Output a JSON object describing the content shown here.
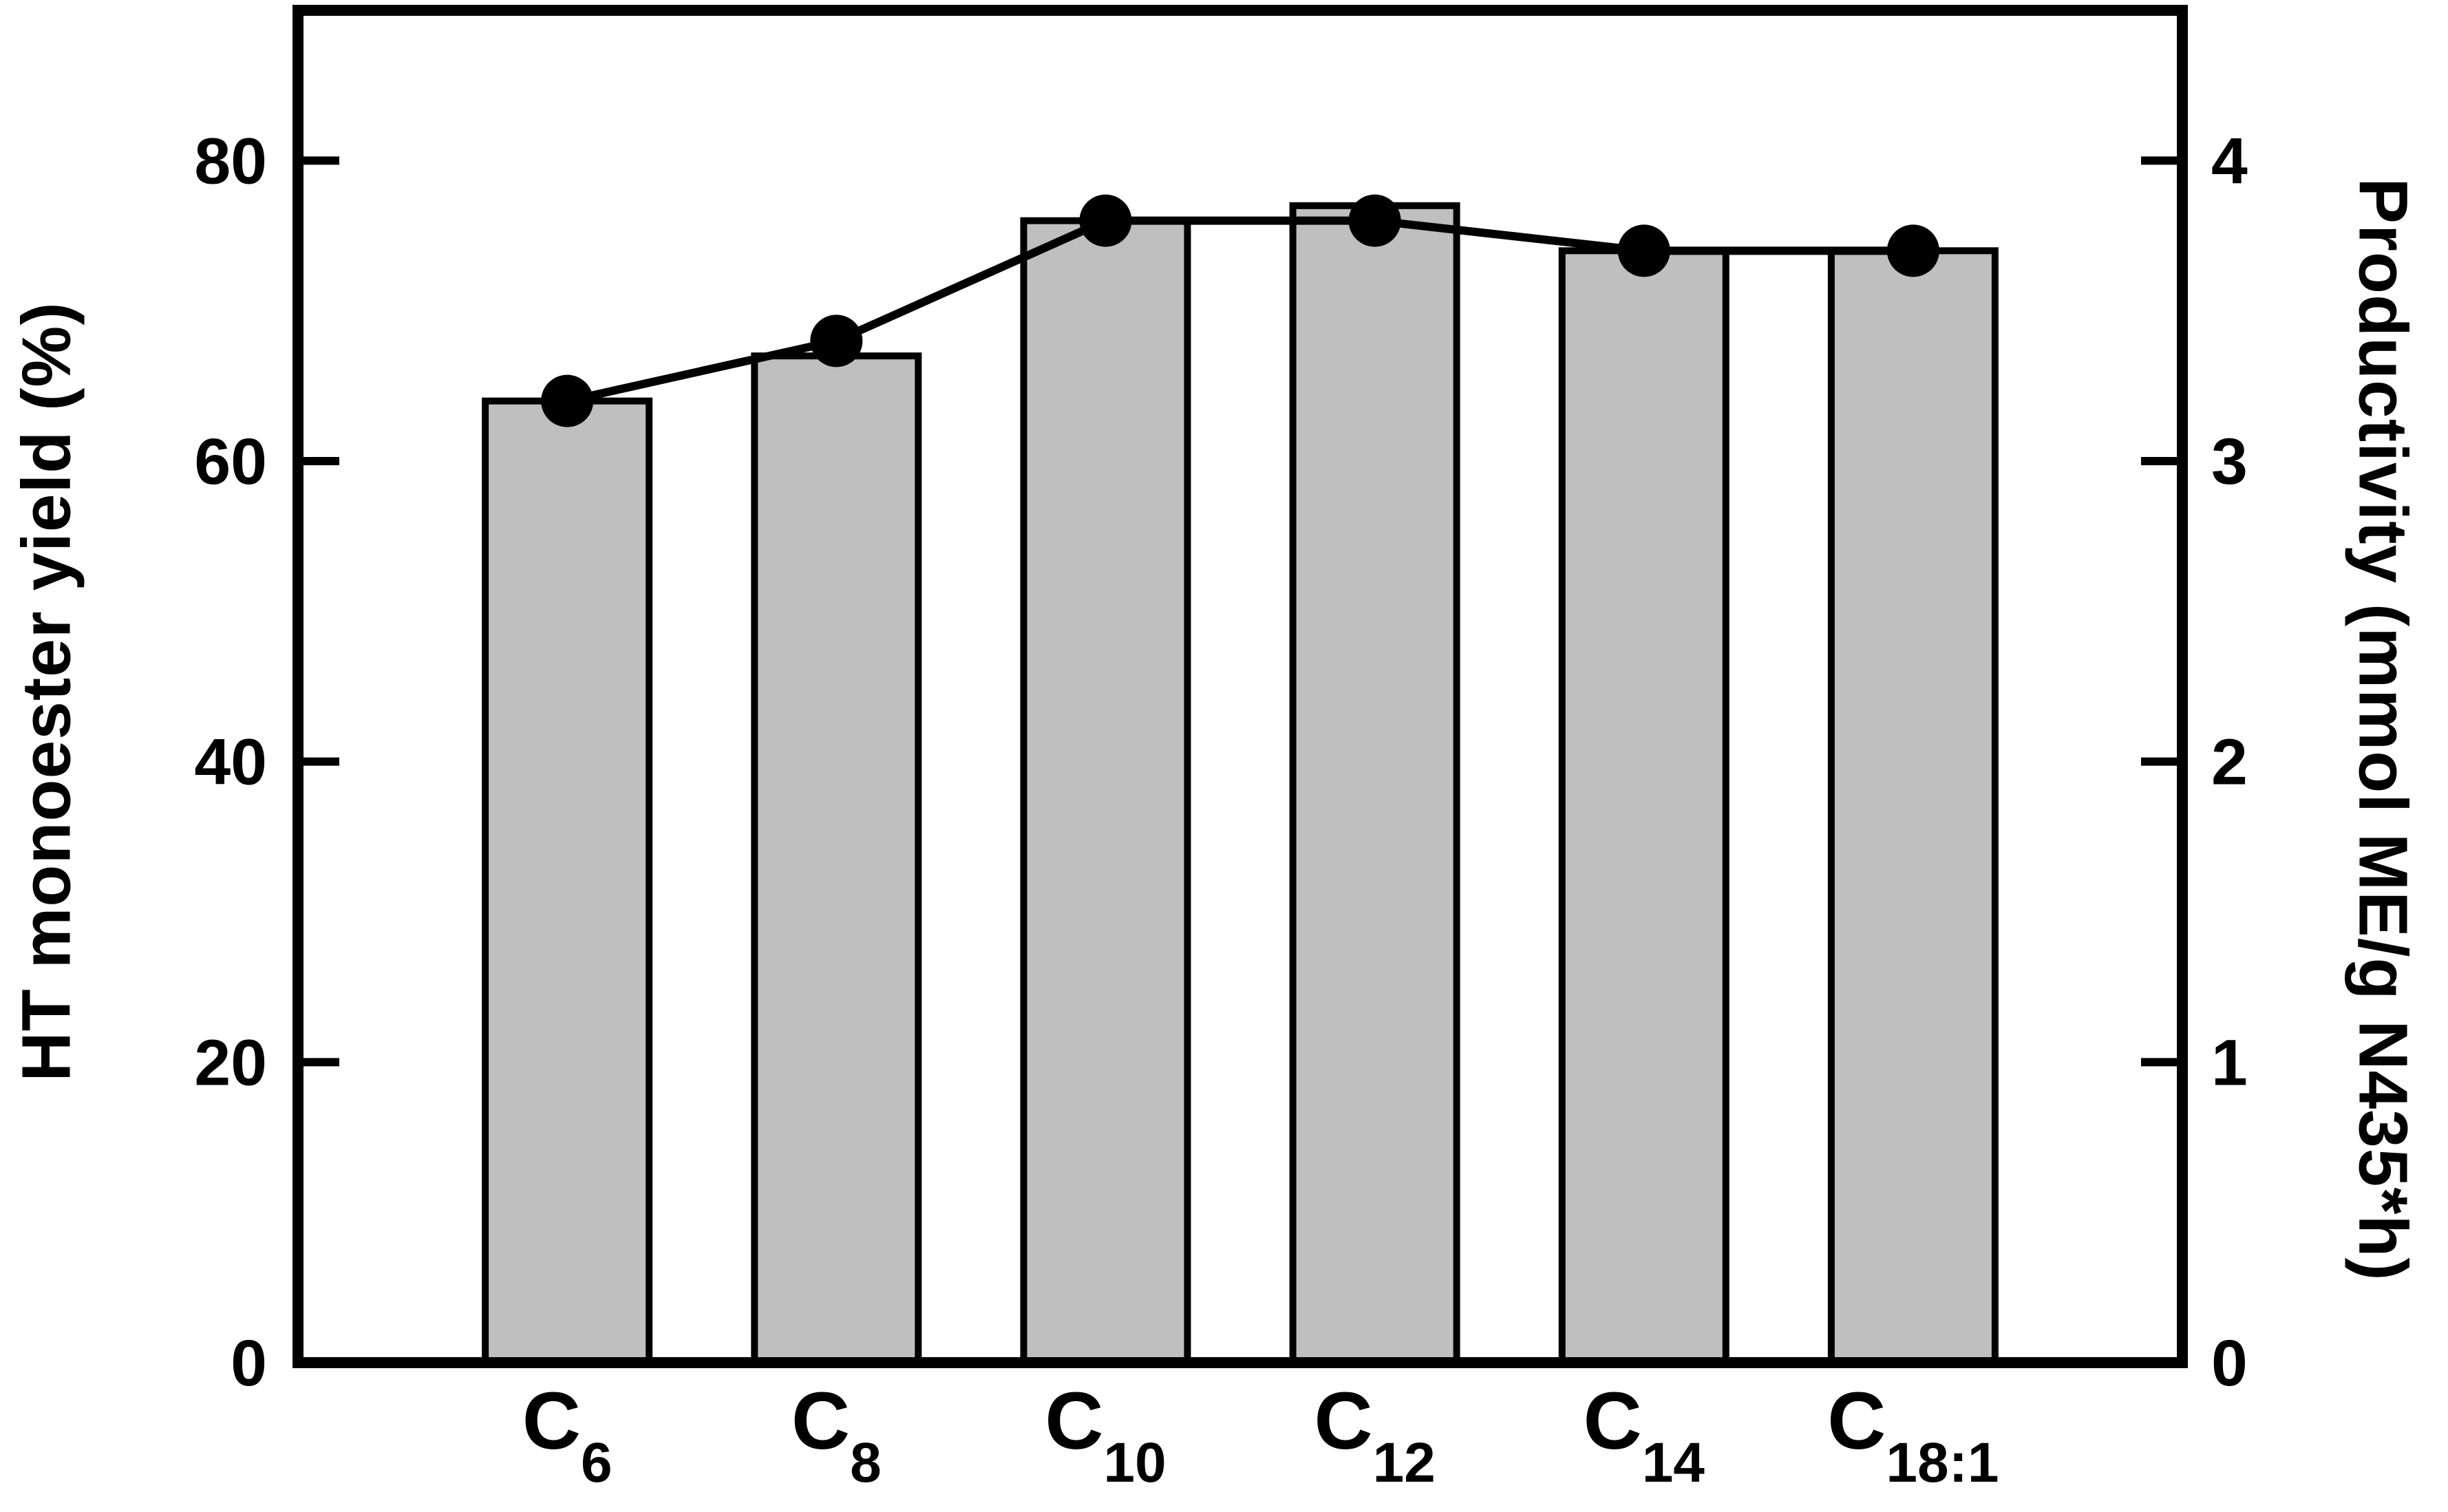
{
  "chart_data": {
    "type": "bar",
    "title": "",
    "categories": [
      {
        "base": "C",
        "sub": "6"
      },
      {
        "base": "C",
        "sub": "8"
      },
      {
        "base": "C",
        "sub": "10"
      },
      {
        "base": "C",
        "sub": "12"
      },
      {
        "base": "C",
        "sub": "14"
      },
      {
        "base": "C",
        "sub": "18:1"
      }
    ],
    "series": [
      {
        "name": "HT monoester yield",
        "type": "bar",
        "axis": "left",
        "values": [
          64,
          67,
          76,
          77,
          74,
          74
        ]
      },
      {
        "name": "Productivity",
        "type": "line",
        "axis": "right",
        "marker": "filled-circle",
        "values": [
          3.2,
          3.4,
          3.8,
          3.8,
          3.7,
          3.7
        ]
      }
    ],
    "left_axis": {
      "label": "HT monoester yield (%)",
      "ticks": [
        0,
        20,
        40,
        60,
        80
      ],
      "range": [
        0,
        90
      ]
    },
    "right_axis": {
      "label": "Productivity (mmol ME/g N435*h)",
      "ticks": [
        0,
        1,
        2,
        3,
        4
      ],
      "range": [
        0,
        4.5
      ]
    },
    "grid": false,
    "legend": "none"
  },
  "colors": {
    "bar_fill": "#bfbfbf",
    "ink": "#000000",
    "background": "#ffffff"
  }
}
